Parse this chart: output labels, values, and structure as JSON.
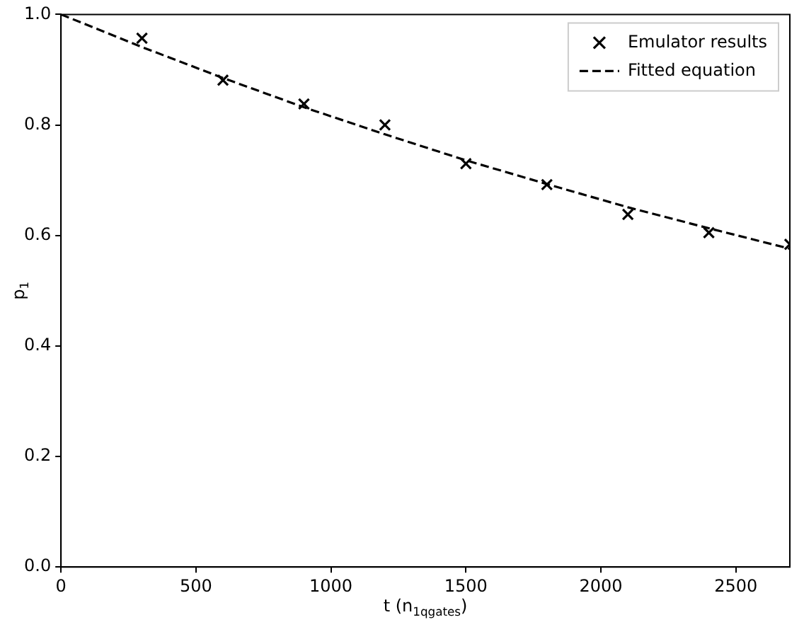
{
  "chart_data": {
    "type": "scatter",
    "xlabel": "t (n$_{1qgates}$)",
    "ylabel": "p$_{1}$",
    "xlim": [
      0,
      2700
    ],
    "ylim": [
      0,
      1
    ],
    "xticks": [
      0,
      500,
      1000,
      1500,
      2000,
      2500
    ],
    "yticks": [
      {
        "value": 0,
        "label": "0.0"
      },
      {
        "value": 0.2,
        "label": "0.2"
      },
      {
        "value": 0.4,
        "label": "0.4"
      },
      {
        "value": 0.6,
        "label": "0.6"
      },
      {
        "value": 0.8,
        "label": "0.8"
      },
      {
        "value": 1,
        "label": "1.0"
      }
    ],
    "grid": false,
    "legend": "top right",
    "series": [
      {
        "name": "Emulator results",
        "color": "#000000",
        "marker": "cross",
        "x": [
          300,
          600,
          900,
          1200,
          1500,
          1800,
          2100,
          2400,
          2700
        ],
        "values": [
          0.957,
          0.881,
          0.838,
          0.8,
          0.73,
          0.692,
          0.638,
          0.605,
          0.584
        ]
      },
      {
        "name": "Fitted equation",
        "type": "line",
        "color": "#000000",
        "marker": "none",
        "line_style": "dashed",
        "x": [
          0,
          300,
          600,
          900,
          1200,
          1500,
          1800,
          2100,
          2400,
          2700
        ],
        "values": [
          1,
          0.941,
          0.885,
          0.832,
          0.783,
          0.736,
          0.693,
          0.651,
          0.613,
          0.576
        ]
      }
    ]
  }
}
